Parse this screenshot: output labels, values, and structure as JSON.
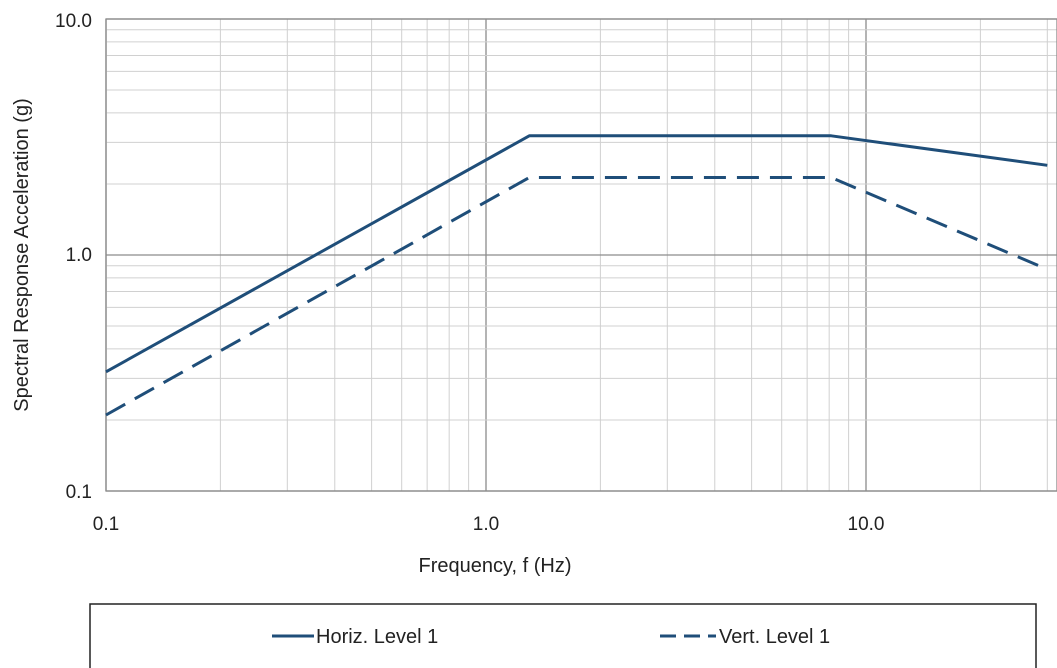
{
  "chart_data": {
    "type": "line",
    "x_scale": "log",
    "y_scale": "log",
    "xlim": [
      0.1,
      30
    ],
    "ylim": [
      0.1,
      10.0
    ],
    "xlabel": "Frequency, f (Hz)",
    "ylabel": "Spectral Response Acceleration (g)",
    "x_tick_labels": [
      "0.1",
      "1.0",
      "10.0"
    ],
    "y_tick_labels": [
      "0.1",
      "1.0",
      "10.0"
    ],
    "grid": true,
    "legend_position": "bottom",
    "series": [
      {
        "name": "Horiz. Level 1",
        "style": "solid",
        "color": "#1f4e79",
        "x": [
          0.1,
          1.3,
          8.1,
          30
        ],
        "y": [
          0.32,
          3.2,
          3.2,
          2.4
        ]
      },
      {
        "name": "Vert. Level 1",
        "style": "dashed",
        "color": "#1f4e79",
        "x": [
          0.1,
          1.3,
          8.1,
          30
        ],
        "y": [
          0.21,
          2.13,
          2.13,
          0.87
        ]
      }
    ]
  }
}
